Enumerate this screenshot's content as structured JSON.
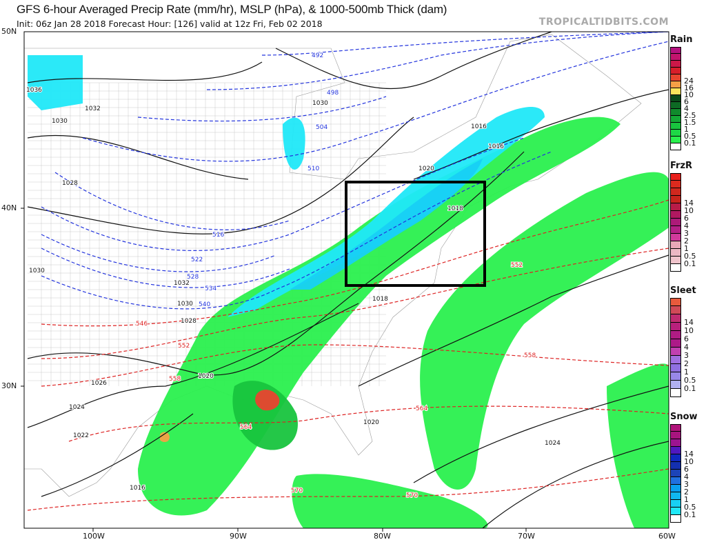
{
  "header": {
    "title": "GFS 6-hour Averaged Precip Rate (mm/hr), MSLP (hPa), & 1000-500mb Thick (dam)",
    "subtitle": "Init: 06z Jan 28 2018   Forecast Hour: [126]   valid at 12z Fri, Feb 02 2018",
    "watermark": "TROPICALTIDBITS.COM"
  },
  "axes": {
    "lat_labels": [
      "50N",
      "40N",
      "30N"
    ],
    "lon_labels": [
      "100W",
      "90W",
      "80W",
      "70W",
      "60W"
    ]
  },
  "legends": [
    {
      "title": "Rain",
      "labels": [
        "24",
        "16",
        "10",
        "6",
        "4",
        "2.5",
        "1.5",
        "1",
        "0.5",
        "0.1"
      ],
      "colors": [
        "#b5127f",
        "#c3146e",
        "#cc1848",
        "#d81e2a",
        "#e8452f",
        "#f4a046",
        "#fbe45c",
        "#0a4a1a",
        "#0d6a24",
        "#108a2c",
        "#14a836",
        "#18c43e",
        "#1ed846",
        "#2af04e",
        "#ffffff"
      ]
    },
    {
      "title": "FrzR",
      "labels": [
        "14",
        "10",
        "6",
        "4",
        "3",
        "2",
        "1",
        "0.5",
        "0.1"
      ],
      "colors": [
        "#e8201c",
        "#dc2a1e",
        "#d0281e",
        "#c8241c",
        "#b81c48",
        "#b01860",
        "#ac1a78",
        "#b42086",
        "#d03a9c",
        "#e8a8b8",
        "#ecb8c4",
        "#f0c4cc",
        "#ffffff"
      ]
    },
    {
      "title": "Sleet",
      "labels": [
        "14",
        "10",
        "6",
        "4",
        "3",
        "2",
        "1",
        "0.5",
        "0.1"
      ],
      "colors": [
        "#e85a3c",
        "#d04a58",
        "#c02c70",
        "#b8207c",
        "#b01c84",
        "#ac1a88",
        "#c040b0",
        "#a070e0",
        "#9070e0",
        "#9888e8",
        "#b0b0f0",
        "#ffffff"
      ]
    },
    {
      "title": "Snow",
      "labels": [
        "14",
        "10",
        "6",
        "4",
        "3",
        "2",
        "1",
        "0.5",
        "0.1"
      ],
      "colors": [
        "#b0147a",
        "#a8147e",
        "#9c1490",
        "#5018c0",
        "#1028c0",
        "#1430b0",
        "#1c44b8",
        "#2070e0",
        "#0aa0f0",
        "#10b8f0",
        "#18d0f4",
        "#20e8f8",
        "#ffffff"
      ]
    }
  ],
  "isobar_labels": [
    "1036",
    "1032",
    "1030",
    "1028",
    "1030",
    "1032",
    "1030",
    "1028",
    "1026",
    "1024",
    "1022",
    "1016",
    "1020",
    "1020",
    "1018",
    "1016",
    "1016",
    "1018",
    "1020",
    "1024",
    "1030"
  ],
  "thickness_labels": [
    "492",
    "498",
    "504",
    "510",
    "516",
    "522",
    "528",
    "534",
    "540",
    "546",
    "552",
    "558",
    "564",
    "570",
    "552",
    "558",
    "564",
    "570"
  ],
  "highlight_box": {
    "color": "#000000"
  },
  "colors": {
    "thickness_cold": "#2233dd",
    "thickness_warm": "#dd2222",
    "isobar": "#111111",
    "map_border": "#555555"
  }
}
